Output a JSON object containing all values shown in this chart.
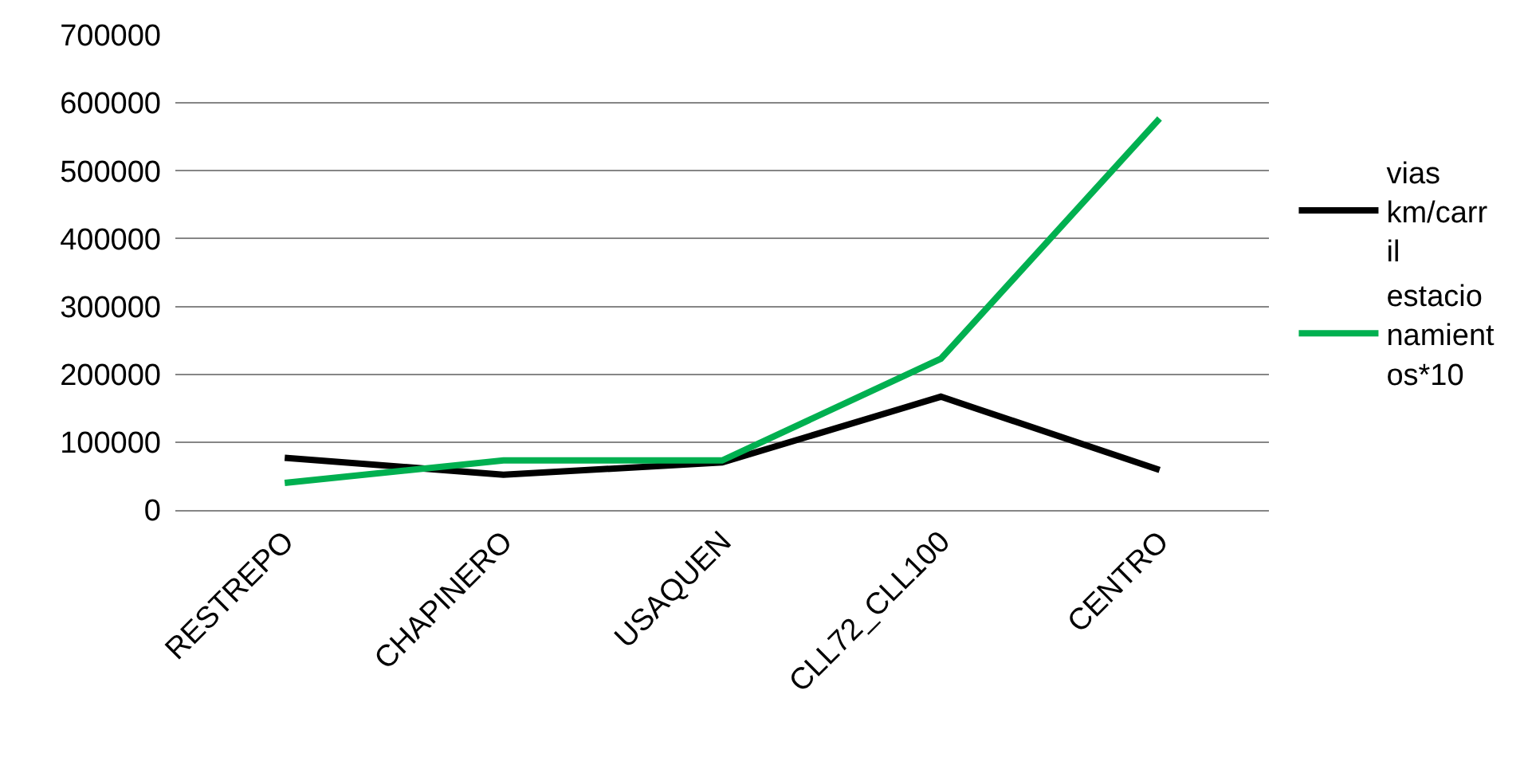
{
  "chart_data": {
    "type": "line",
    "categories": [
      "RESTREPO",
      "CHAPINERO",
      "USAQUEN",
      "CLL72_CLL100",
      "CENTRO"
    ],
    "series": [
      {
        "name": "vias km/carril",
        "color": "#000000",
        "values": [
          77000,
          52000,
          70000,
          167000,
          59000
        ]
      },
      {
        "name": "estacionamientos*10",
        "color": "#00b050",
        "values": [
          40000,
          73000,
          73000,
          223000,
          577000
        ]
      }
    ],
    "ylim": [
      0,
      700000
    ],
    "yticks": [
      0,
      100000,
      200000,
      300000,
      400000,
      500000,
      600000,
      700000
    ],
    "grid": "y",
    "legend": "right",
    "marker": "none",
    "line_style": "solid"
  }
}
